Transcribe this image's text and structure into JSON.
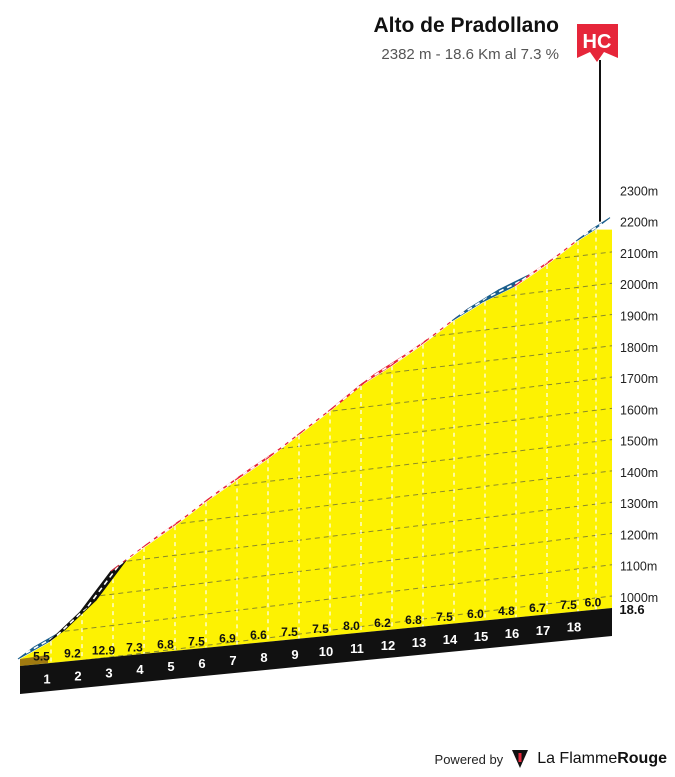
{
  "header": {
    "title": "Alto de Pradollano",
    "subtitle": "2382 m - 18.6 Km al 7.3 %"
  },
  "category_flag": {
    "label": "HC",
    "color": "#e6263a"
  },
  "footer": {
    "powered_by": "Powered by",
    "brand_part1": "La Flamme",
    "brand_part2": "Rouge"
  },
  "colors": {
    "yellow": "#fdf202",
    "black": "#111111",
    "red": "#e6263a",
    "blue": "#1a5e8c",
    "brown": "#a07a10"
  },
  "chart_data": {
    "type": "area",
    "title": "Alto de Pradollano",
    "x_unit": "km",
    "y_unit": "m",
    "total_distance_km": 18.6,
    "summit_altitude_m": 2382,
    "km_ticks": [
      "1",
      "2",
      "3",
      "4",
      "5",
      "6",
      "7",
      "8",
      "9",
      "10",
      "11",
      "12",
      "13",
      "14",
      "15",
      "16",
      "17",
      "18"
    ],
    "end_label": "18.6",
    "y_ticks": [
      1000,
      1100,
      1200,
      1300,
      1400,
      1500,
      1600,
      1700,
      1800,
      1900,
      2000,
      2100,
      2200,
      2300
    ],
    "y_tick_labels": [
      "1000m",
      "1100m",
      "1200m",
      "1300m",
      "1400m",
      "1500m",
      "1600m",
      "1700m",
      "1800m",
      "1900m",
      "2000m",
      "2100m",
      "2200m",
      "2300m"
    ],
    "segments": [
      {
        "gradient": 5.5,
        "gradient_label": "5.5",
        "color": "blue"
      },
      {
        "gradient": 9.2,
        "gradient_label": "9.2",
        "color": "black"
      },
      {
        "gradient": 12.9,
        "gradient_label": "12.9",
        "color": "black"
      },
      {
        "gradient": 7.3,
        "gradient_label": "7.3",
        "color": "red"
      },
      {
        "gradient": 6.8,
        "gradient_label": "6.8",
        "color": "red"
      },
      {
        "gradient": 7.5,
        "gradient_label": "7.5",
        "color": "red"
      },
      {
        "gradient": 6.9,
        "gradient_label": "6.9",
        "color": "red"
      },
      {
        "gradient": 6.6,
        "gradient_label": "6.6",
        "color": "red"
      },
      {
        "gradient": 7.5,
        "gradient_label": "7.5",
        "color": "red"
      },
      {
        "gradient": 7.5,
        "gradient_label": "7.5",
        "color": "red"
      },
      {
        "gradient": 8.0,
        "gradient_label": "8.0",
        "color": "red"
      },
      {
        "gradient": 6.2,
        "gradient_label": "6.2",
        "color": "red"
      },
      {
        "gradient": 6.8,
        "gradient_label": "6.8",
        "color": "red"
      },
      {
        "gradient": 7.5,
        "gradient_label": "7.5",
        "color": "red"
      },
      {
        "gradient": 6.0,
        "gradient_label": "6.0",
        "color": "blue"
      },
      {
        "gradient": 4.8,
        "gradient_label": "4.8",
        "color": "blue"
      },
      {
        "gradient": 6.7,
        "gradient_label": "6.7",
        "color": "red"
      },
      {
        "gradient": 7.5,
        "gradient_label": "7.5",
        "color": "red"
      },
      {
        "gradient": 6.0,
        "gradient_label": "6.0",
        "color": "blue"
      }
    ]
  }
}
